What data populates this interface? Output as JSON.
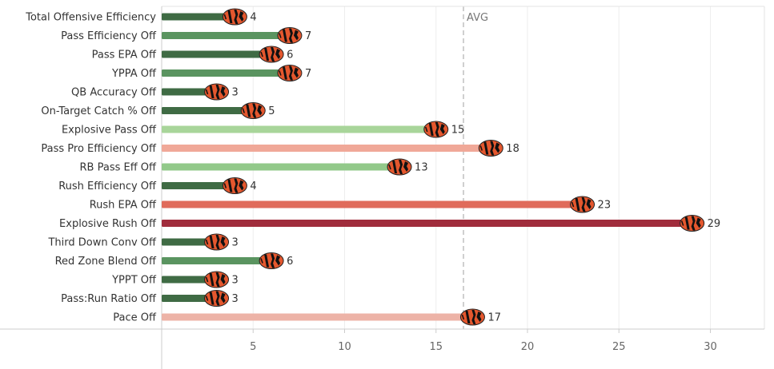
{
  "chart_data": {
    "type": "bar",
    "orientation": "horizontal",
    "categories": [
      "Total Offensive Efficiency",
      "Pass Efficiency Off",
      "Pass EPA Off",
      "YPPA Off",
      "QB Accuracy Off",
      "On-Target Catch % Off",
      "Explosive Pass Off",
      "Pass Pro Efficiency Off",
      "RB Pass Eff Off",
      "Rush Efficiency Off",
      "Rush EPA Off",
      "Explosive Rush Off",
      "Third Down Conv Off",
      "Red Zone Blend Off",
      "YPPT Off",
      "Pass:Run Ratio Off",
      "Pace Off"
    ],
    "values": [
      4,
      7,
      6,
      7,
      3,
      5,
      15,
      18,
      13,
      4,
      23,
      29,
      3,
      6,
      3,
      3,
      17
    ],
    "colors": [
      "#3f6b44",
      "#5a9460",
      "#3f6b44",
      "#5a9460",
      "#3f6b44",
      "#3f6b44",
      "#a8d59a",
      "#f0a898",
      "#92c98a",
      "#3f6b44",
      "#e06b5b",
      "#a02c3c",
      "#3f6b44",
      "#5a9460",
      "#3f6b44",
      "#3f6b44",
      "#edb3a7"
    ],
    "xticks": [
      5,
      10,
      15,
      20,
      25,
      30
    ],
    "xlim": [
      0,
      32
    ],
    "reference_line": {
      "label": "AVG",
      "value": 16.5
    },
    "grid": true,
    "legend": "none",
    "marker_icon": "bengals-logo-icon"
  }
}
